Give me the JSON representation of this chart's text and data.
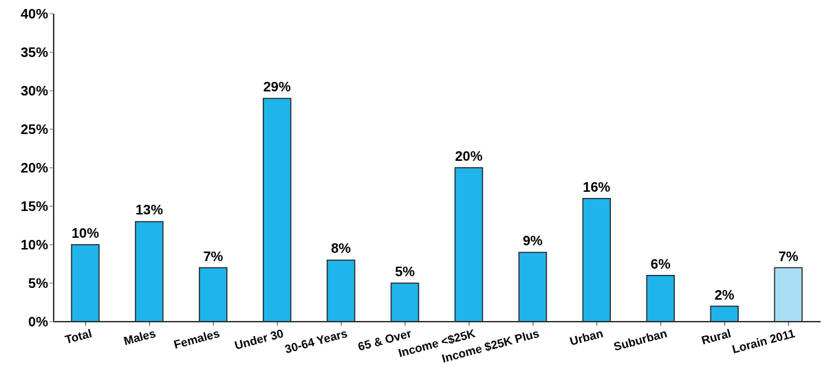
{
  "chart_data": {
    "type": "bar",
    "categories": [
      "Total",
      "Males",
      "Females",
      "Under 30",
      "30-64 Years",
      "65 & Over",
      "Income <$25K",
      "Income $25K Plus",
      "Urban",
      "Suburban",
      "Rural",
      "Lorain 2011"
    ],
    "values": [
      10,
      13,
      7,
      29,
      8,
      5,
      20,
      9,
      16,
      6,
      2,
      7
    ],
    "colors": [
      "#1fb4ea",
      "#1fb4ea",
      "#1fb4ea",
      "#1fb4ea",
      "#1fb4ea",
      "#1fb4ea",
      "#1fb4ea",
      "#1fb4ea",
      "#1fb4ea",
      "#1fb4ea",
      "#1fb4ea",
      "#a8def3"
    ],
    "value_labels": [
      "10%",
      "13%",
      "7%",
      "29%",
      "8%",
      "5%",
      "20%",
      "9%",
      "16%",
      "6%",
      "2%",
      "7%"
    ],
    "ylim": [
      0,
      40
    ],
    "yticks": [
      {
        "value": 0,
        "label": "0%"
      },
      {
        "value": 5,
        "label": "5%"
      },
      {
        "value": 10,
        "label": "10%"
      },
      {
        "value": 15,
        "label": "15%"
      },
      {
        "value": 20,
        "label": "20%"
      },
      {
        "value": 25,
        "label": "25%"
      },
      {
        "value": 30,
        "label": "30%"
      },
      {
        "value": 35,
        "label": "35%"
      },
      {
        "value": 40,
        "label": "40%"
      }
    ],
    "grid": false,
    "legend": false
  }
}
